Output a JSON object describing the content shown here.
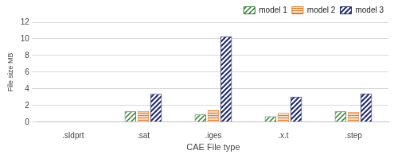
{
  "chart_data": {
    "type": "bar",
    "x_label": "CAE File type",
    "y_label": "File size MB",
    "categories": [
      ".sldprt",
      ".sat",
      ".iges",
      ".x.t",
      ".step"
    ],
    "series": [
      {
        "name": "model 1",
        "color": "#2e7d32",
        "values": [
          null,
          1.3,
          0.9,
          0.7,
          1.3
        ]
      },
      {
        "name": "model 2",
        "color": "#e07b28",
        "values": [
          null,
          1.35,
          1.4,
          1.1,
          1.2
        ]
      },
      {
        "name": "model 3",
        "color": "#1f2a6b",
        "values": [
          null,
          3.4,
          10.3,
          3.05,
          3.45
        ]
      }
    ],
    "ylim": [
      0,
      12
    ],
    "yticks": [
      0,
      2,
      4,
      6,
      8,
      10,
      12
    ],
    "grid": true,
    "legend": "top-right"
  }
}
